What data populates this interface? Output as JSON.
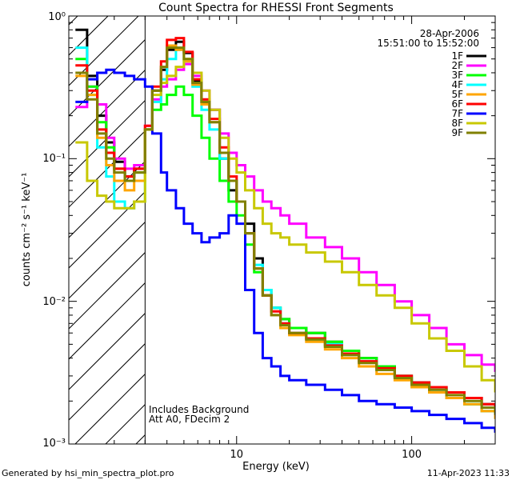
{
  "footer": {
    "generated_by": "Generated by hsi_min_spectra_plot.pro",
    "timestamp": "11-Apr-2023 11:33"
  },
  "chart_data": {
    "type": "line",
    "title": "Count Spectra for RHESSI Front Segments",
    "xlabel": "Energy (keV)",
    "ylabel": "counts cm⁻² s⁻¹ keV⁻¹",
    "xscale": "log",
    "yscale": "log",
    "xlim": [
      1.1,
      300
    ],
    "ylim": [
      0.001,
      1.0
    ],
    "x_tick_labels": [
      "10",
      "100"
    ],
    "y_tick_labels": [
      "10⁰",
      "10⁻¹",
      "10⁻²",
      "10⁻³"
    ],
    "legend_position": "top-right",
    "header_date": "28-Apr-2006",
    "header_time": "15:51:00 to 15:52:00",
    "annotations": [
      "Includes Background",
      "Att A0, FDecim 2"
    ],
    "excluded_region_max_keV": 3.0,
    "energy_bins": [
      1.2,
      1.4,
      1.6,
      1.8,
      2.0,
      2.3,
      2.6,
      3.0,
      3.3,
      3.7,
      4.0,
      4.5,
      5.0,
      5.6,
      6.3,
      7.0,
      8.0,
      9.0,
      10.0,
      11.2,
      12.6,
      14.1,
      15.8,
      17.8,
      20,
      25,
      32,
      40,
      50,
      63,
      80,
      100,
      126,
      158,
      200,
      251,
      300
    ],
    "series": [
      {
        "name": "1F",
        "color": "#000000",
        "values": [
          0.8,
          0.38,
          0.2,
          0.13,
          0.095,
          0.075,
          0.085,
          0.16,
          0.3,
          0.42,
          0.58,
          0.66,
          0.55,
          0.35,
          0.25,
          0.22,
          0.1,
          0.06,
          0.05,
          0.035,
          0.02,
          0.011,
          0.009,
          0.0075,
          0.0065,
          0.006,
          0.0052,
          0.0045,
          0.004,
          0.0035,
          0.003,
          0.0027,
          0.0025,
          0.0023,
          0.0021,
          0.0019,
          0.0018
        ]
      },
      {
        "name": "2F",
        "color": "#ff00ff",
        "values": [
          0.23,
          0.32,
          0.24,
          0.14,
          0.1,
          0.085,
          0.09,
          0.17,
          0.26,
          0.32,
          0.36,
          0.42,
          0.46,
          0.38,
          0.3,
          0.22,
          0.15,
          0.11,
          0.09,
          0.075,
          0.06,
          0.05,
          0.045,
          0.04,
          0.035,
          0.028,
          0.024,
          0.02,
          0.016,
          0.013,
          0.01,
          0.008,
          0.0065,
          0.005,
          0.0042,
          0.0036,
          0.0032
        ]
      },
      {
        "name": "3F",
        "color": "#00ff00",
        "values": [
          0.5,
          0.32,
          0.18,
          0.12,
          0.085,
          0.07,
          0.08,
          0.16,
          0.22,
          0.24,
          0.28,
          0.32,
          0.28,
          0.2,
          0.14,
          0.1,
          0.07,
          0.05,
          0.04,
          0.025,
          0.016,
          0.012,
          0.009,
          0.0075,
          0.0065,
          0.006,
          0.0052,
          0.0045,
          0.004,
          0.0035,
          0.003,
          0.0026,
          0.0023,
          0.0021,
          0.0019,
          0.0017,
          0.0015
        ]
      },
      {
        "name": "4F",
        "color": "#00ffff",
        "values": [
          0.6,
          0.28,
          0.12,
          0.075,
          0.05,
          0.045,
          0.05,
          0.16,
          0.25,
          0.36,
          0.5,
          0.58,
          0.48,
          0.32,
          0.22,
          0.16,
          0.1,
          0.07,
          0.05,
          0.03,
          0.018,
          0.012,
          0.009,
          0.007,
          0.006,
          0.0055,
          0.005,
          0.0043,
          0.0038,
          0.0033,
          0.0029,
          0.0026,
          0.0024,
          0.0021,
          0.0019,
          0.0017,
          0.0016
        ]
      },
      {
        "name": "5F",
        "color": "#ffa500",
        "values": [
          0.38,
          0.28,
          0.14,
          0.09,
          0.07,
          0.06,
          0.07,
          0.16,
          0.3,
          0.44,
          0.62,
          0.58,
          0.48,
          0.33,
          0.24,
          0.18,
          0.11,
          0.07,
          0.05,
          0.03,
          0.017,
          0.011,
          0.008,
          0.0065,
          0.0058,
          0.0052,
          0.0046,
          0.004,
          0.0035,
          0.0031,
          0.0028,
          0.0025,
          0.0023,
          0.0021,
          0.0019,
          0.0017,
          0.0015
        ]
      },
      {
        "name": "6F",
        "color": "#ff0000",
        "values": [
          0.45,
          0.3,
          0.16,
          0.11,
          0.085,
          0.075,
          0.085,
          0.17,
          0.32,
          0.48,
          0.68,
          0.7,
          0.56,
          0.36,
          0.26,
          0.19,
          0.12,
          0.075,
          0.05,
          0.03,
          0.017,
          0.011,
          0.0085,
          0.007,
          0.006,
          0.0055,
          0.0049,
          0.0043,
          0.0038,
          0.0034,
          0.003,
          0.0027,
          0.0025,
          0.0023,
          0.0021,
          0.0019,
          0.0017
        ]
      },
      {
        "name": "7F",
        "color": "#0000ff",
        "values": [
          0.25,
          0.36,
          0.4,
          0.42,
          0.4,
          0.38,
          0.36,
          0.32,
          0.15,
          0.08,
          0.06,
          0.045,
          0.035,
          0.03,
          0.026,
          0.028,
          0.03,
          0.04,
          0.035,
          0.012,
          0.006,
          0.004,
          0.0035,
          0.003,
          0.0028,
          0.0026,
          0.0024,
          0.0022,
          0.002,
          0.0019,
          0.0018,
          0.0017,
          0.0016,
          0.0015,
          0.0014,
          0.0013,
          0.0012
        ]
      },
      {
        "name": "8F",
        "color": "#c8c800",
        "values": [
          0.13,
          0.07,
          0.055,
          0.05,
          0.045,
          0.045,
          0.05,
          0.16,
          0.28,
          0.34,
          0.38,
          0.44,
          0.5,
          0.4,
          0.3,
          0.22,
          0.14,
          0.1,
          0.08,
          0.06,
          0.045,
          0.035,
          0.03,
          0.028,
          0.025,
          0.022,
          0.019,
          0.016,
          0.013,
          0.011,
          0.009,
          0.007,
          0.0055,
          0.0045,
          0.0035,
          0.0028,
          0.0023
        ]
      },
      {
        "name": "9F",
        "color": "#808000",
        "values": [
          0.4,
          0.26,
          0.15,
          0.1,
          0.08,
          0.07,
          0.08,
          0.16,
          0.3,
          0.44,
          0.6,
          0.6,
          0.5,
          0.34,
          0.25,
          0.18,
          0.11,
          0.07,
          0.05,
          0.03,
          0.017,
          0.011,
          0.008,
          0.0068,
          0.006,
          0.0054,
          0.0048,
          0.0042,
          0.0037,
          0.0033,
          0.0029,
          0.0026,
          0.0024,
          0.0022,
          0.002,
          0.0018,
          0.0016
        ]
      }
    ]
  }
}
